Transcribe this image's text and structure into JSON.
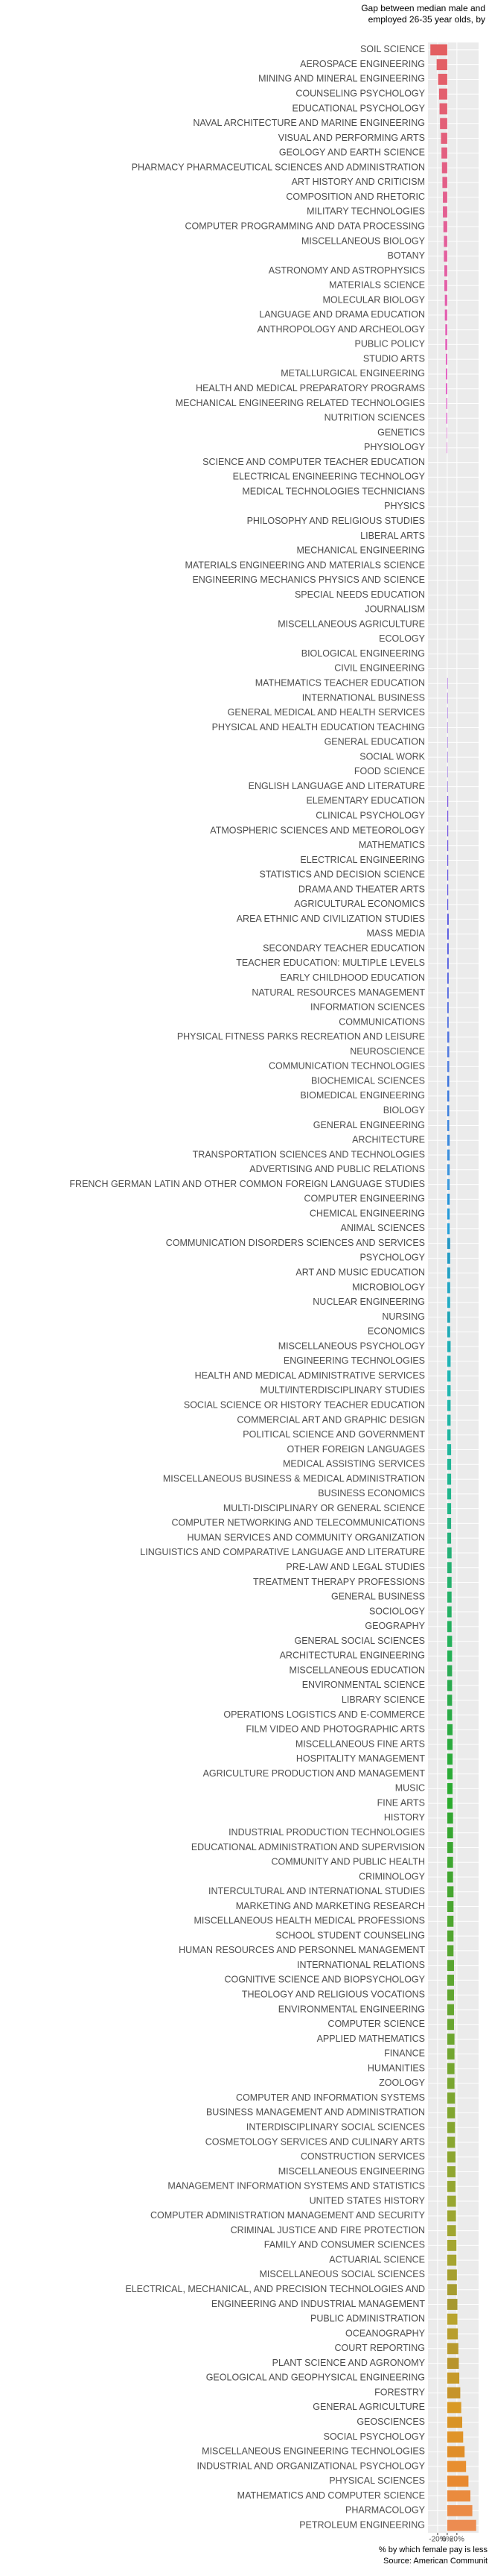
{
  "chart_data": {
    "type": "barh",
    "title": [
      "Gap between median male and",
      "employed 26-35 year olds, by"
    ],
    "xlabel": "% by which female pay is less",
    "source": "Source: American Communit",
    "categories": [
      "SOIL SCIENCE",
      "AEROSPACE ENGINEERING",
      "MINING AND MINERAL ENGINEERING",
      "COUNSELING PSYCHOLOGY",
      "EDUCATIONAL PSYCHOLOGY",
      "NAVAL ARCHITECTURE AND MARINE ENGINEERING",
      "VISUAL AND PERFORMING ARTS",
      "GEOLOGY AND EARTH SCIENCE",
      "PHARMACY PHARMACEUTICAL SCIENCES AND ADMINISTRATION",
      "ART HISTORY AND CRITICISM",
      "COMPOSITION AND RHETORIC",
      "MILITARY TECHNOLOGIES",
      "COMPUTER PROGRAMMING AND DATA PROCESSING",
      "MISCELLANEOUS BIOLOGY",
      "BOTANY",
      "ASTRONOMY AND ASTROPHYSICS",
      "MATERIALS SCIENCE",
      "MOLECULAR BIOLOGY",
      "LANGUAGE AND DRAMA EDUCATION",
      "ANTHROPOLOGY AND ARCHEOLOGY",
      "PUBLIC POLICY",
      "STUDIO ARTS",
      "METALLURGICAL ENGINEERING",
      "HEALTH AND MEDICAL PREPARATORY PROGRAMS",
      "MECHANICAL ENGINEERING RELATED TECHNOLOGIES",
      "NUTRITION SCIENCES",
      "GENETICS",
      "PHYSIOLOGY",
      "SCIENCE AND COMPUTER TEACHER EDUCATION",
      "ELECTRICAL ENGINEERING TECHNOLOGY",
      "MEDICAL TECHNOLOGIES TECHNICIANS",
      "PHYSICS",
      "PHILOSOPHY AND RELIGIOUS STUDIES",
      "LIBERAL ARTS",
      "MECHANICAL ENGINEERING",
      "MATERIALS ENGINEERING AND MATERIALS SCIENCE",
      "ENGINEERING MECHANICS PHYSICS AND SCIENCE",
      "SPECIAL NEEDS EDUCATION",
      "JOURNALISM",
      "MISCELLANEOUS AGRICULTURE",
      "ECOLOGY",
      "BIOLOGICAL ENGINEERING",
      "CIVIL ENGINEERING",
      "MATHEMATICS TEACHER EDUCATION",
      "INTERNATIONAL BUSINESS",
      "GENERAL MEDICAL AND HEALTH SERVICES",
      "PHYSICAL AND HEALTH EDUCATION TEACHING",
      "GENERAL EDUCATION",
      "SOCIAL WORK",
      "FOOD SCIENCE",
      "ENGLISH LANGUAGE AND LITERATURE",
      "ELEMENTARY EDUCATION",
      "CLINICAL PSYCHOLOGY",
      "ATMOSPHERIC SCIENCES AND METEOROLOGY",
      "MATHEMATICS",
      "ELECTRICAL ENGINEERING",
      "STATISTICS AND DECISION SCIENCE",
      "DRAMA AND THEATER ARTS",
      "AGRICULTURAL ECONOMICS",
      "AREA ETHNIC AND CIVILIZATION STUDIES",
      "MASS MEDIA",
      "SECONDARY TEACHER EDUCATION",
      "TEACHER EDUCATION: MULTIPLE LEVELS",
      "EARLY CHILDHOOD EDUCATION",
      "NATURAL RESOURCES MANAGEMENT",
      "INFORMATION SCIENCES",
      "COMMUNICATIONS",
      "PHYSICAL FITNESS PARKS RECREATION AND LEISURE",
      "NEUROSCIENCE",
      "COMMUNICATION TECHNOLOGIES",
      "BIOCHEMICAL SCIENCES",
      "BIOMEDICAL ENGINEERING",
      "BIOLOGY",
      "GENERAL ENGINEERING",
      "ARCHITECTURE",
      "TRANSPORTATION SCIENCES AND TECHNOLOGIES",
      "ADVERTISING AND PUBLIC RELATIONS",
      "FRENCH GERMAN LATIN AND OTHER COMMON FOREIGN LANGUAGE STUDIES",
      "COMPUTER ENGINEERING",
      "CHEMICAL ENGINEERING",
      "ANIMAL SCIENCES",
      "COMMUNICATION DISORDERS SCIENCES AND SERVICES",
      "PSYCHOLOGY",
      "ART AND MUSIC EDUCATION",
      "MICROBIOLOGY",
      "NUCLEAR ENGINEERING",
      "NURSING",
      "ECONOMICS",
      "MISCELLANEOUS PSYCHOLOGY",
      "ENGINEERING TECHNOLOGIES",
      "HEALTH AND MEDICAL ADMINISTRATIVE SERVICES",
      "MULTI/INTERDISCIPLINARY STUDIES",
      "SOCIAL SCIENCE OR HISTORY TEACHER EDUCATION",
      "COMMERCIAL ART AND GRAPHIC DESIGN",
      "POLITICAL SCIENCE AND GOVERNMENT",
      "OTHER FOREIGN LANGUAGES",
      "MEDICAL ASSISTING SERVICES",
      "MISCELLANEOUS BUSINESS & MEDICAL ADMINISTRATION",
      "BUSINESS ECONOMICS",
      "MULTI-DISCIPLINARY OR GENERAL SCIENCE",
      "COMPUTER NETWORKING AND TELECOMMUNICATIONS",
      "HUMAN SERVICES AND COMMUNITY ORGANIZATION",
      "LINGUISTICS AND COMPARATIVE LANGUAGE AND LITERATURE",
      "PRE-LAW AND LEGAL STUDIES",
      "TREATMENT THERAPY PROFESSIONS",
      "GENERAL BUSINESS",
      "SOCIOLOGY",
      "GEOGRAPHY",
      "GENERAL SOCIAL SCIENCES",
      "ARCHITECTURAL ENGINEERING",
      "MISCELLANEOUS EDUCATION",
      "ENVIRONMENTAL SCIENCE",
      "LIBRARY SCIENCE",
      "OPERATIONS LOGISTICS AND E-COMMERCE",
      "FILM VIDEO AND PHOTOGRAPHIC ARTS",
      "MISCELLANEOUS FINE ARTS",
      "HOSPITALITY MANAGEMENT",
      "AGRICULTURE PRODUCTION AND MANAGEMENT",
      "MUSIC",
      "FINE ARTS",
      "HISTORY",
      "INDUSTRIAL PRODUCTION TECHNOLOGIES",
      "EDUCATIONAL ADMINISTRATION AND SUPERVISION",
      "COMMUNITY AND PUBLIC HEALTH",
      "CRIMINOLOGY",
      "INTERCULTURAL AND INTERNATIONAL STUDIES",
      "MARKETING AND MARKETING RESEARCH",
      "MISCELLANEOUS HEALTH MEDICAL PROFESSIONS",
      "SCHOOL STUDENT COUNSELING",
      "HUMAN RESOURCES AND PERSONNEL MANAGEMENT",
      "INTERNATIONAL RELATIONS",
      "COGNITIVE SCIENCE AND BIOPSYCHOLOGY",
      "THEOLOGY AND RELIGIOUS VOCATIONS",
      "ENVIRONMENTAL ENGINEERING",
      "COMPUTER SCIENCE",
      "APPLIED MATHEMATICS",
      "FINANCE",
      "HUMANITIES",
      "ZOOLOGY",
      "COMPUTER AND INFORMATION SYSTEMS",
      "BUSINESS MANAGEMENT AND ADMINISTRATION",
      "INTERDISCIPLINARY SOCIAL SCIENCES",
      "COSMETOLOGY SERVICES AND CULINARY ARTS",
      "CONSTRUCTION SERVICES",
      "MISCELLANEOUS ENGINEERING",
      "MANAGEMENT INFORMATION SYSTEMS AND STATISTICS",
      "UNITED STATES HISTORY",
      "COMPUTER ADMINISTRATION MANAGEMENT AND SECURITY",
      "CRIMINAL JUSTICE AND FIRE PROTECTION",
      "FAMILY AND CONSUMER SCIENCES",
      "ACTUARIAL SCIENCE",
      "MISCELLANEOUS SOCIAL SCIENCES",
      "ELECTRICAL, MECHANICAL, AND PRECISION TECHNOLOGIES AND",
      "ENGINEERING AND INDUSTRIAL MANAGEMENT",
      "PUBLIC ADMINISTRATION",
      "OCEANOGRAPHY",
      "COURT REPORTING",
      "PLANT SCIENCE AND AGRONOMY",
      "GEOLOGICAL AND GEOPHYSICAL ENGINEERING",
      "FORESTRY",
      "GENERAL AGRICULTURE",
      "GEOSCIENCES",
      "SOCIAL PSYCHOLOGY",
      "MISCELLANEOUS ENGINEERING TECHNOLOGIES",
      "INDUSTRIAL AND ORGANIZATIONAL PSYCHOLOGY",
      "PHYSICAL SCIENCES",
      "MATHEMATICS AND COMPUTER SCIENCE",
      "PHARMACOLOGY",
      "PETROLEUM ENGINEERING"
    ],
    "values": [
      -35,
      -22,
      -19,
      -17,
      -16,
      -15,
      -13,
      -12,
      -11,
      -10,
      -9,
      -9,
      -8,
      -7,
      -7,
      -6,
      -6,
      -5,
      -5,
      -4,
      -4,
      -3,
      -3,
      -3,
      -2,
      -2,
      -1,
      -1,
      0,
      0,
      0,
      0,
      0,
      0,
      0,
      0,
      0,
      0,
      0,
      0,
      0,
      0,
      0,
      1,
      1,
      1,
      1,
      1,
      1,
      1,
      1,
      2,
      2,
      2,
      2,
      2,
      2,
      2,
      2,
      3,
      3,
      3,
      3,
      3,
      3,
      3,
      3,
      4,
      4,
      4,
      4,
      4,
      4,
      4,
      5,
      5,
      5,
      5,
      5,
      5,
      5,
      6,
      6,
      6,
      6,
      6,
      6,
      6,
      7,
      7,
      7,
      7,
      7,
      7,
      7,
      8,
      8,
      8,
      8,
      8,
      8,
      8,
      9,
      9,
      9,
      9,
      9,
      9,
      10,
      10,
      10,
      10,
      10,
      10,
      11,
      11,
      11,
      11,
      11,
      11,
      12,
      12,
      12,
      12,
      12,
      13,
      13,
      13,
      13,
      13,
      14,
      14,
      14,
      14,
      14,
      15,
      15,
      15,
      15,
      16,
      16,
      16,
      16,
      17,
      17,
      17,
      18,
      18,
      18,
      19,
      19,
      20,
      20,
      21,
      21,
      22,
      23,
      24,
      25,
      27,
      29,
      31,
      33,
      36,
      39,
      44,
      48,
      52,
      60
    ],
    "colors": [
      "hsl(359,70%,63%)",
      "hsl(357,70%,63%)",
      "hsl(355,70%,63%)",
      "hsl(353,70%,63%)",
      "hsl(351,70%,63%)",
      "hsl(349,70%,63%)",
      "hsl(347,70%,63%)",
      "hsl(345,70%,63%)",
      "hsl(343,70%,63%)",
      "hsl(341,70%,63%)",
      "hsl(339,70%,63%)",
      "hsl(337,70%,63%)",
      "hsl(335,70%,63%)",
      "hsl(333,70%,63%)",
      "hsl(331,70%,63%)",
      "hsl(329,70%,63%)",
      "hsl(327,70%,63%)",
      "hsl(325,70%,63%)",
      "hsl(323,70%,63%)",
      "hsl(321,70%,63%)",
      "hsl(319,70%,63%)",
      "hsl(317,70%,63%)",
      "hsl(315,70%,63%)",
      "hsl(313,70%,63%)",
      "hsl(311,70%,63%)",
      "hsl(309,70%,63%)",
      "hsl(307,70%,63%)",
      "hsl(305,70%,63%)",
      "hsl(303,70%,63%)",
      "hsl(301,70%,63%)",
      "hsl(299,70%,63%)",
      "hsl(297,70%,63%)",
      "hsl(295,70%,63%)",
      "hsl(293,70%,63%)",
      "hsl(291,70%,63%)",
      "hsl(289,70%,63%)",
      "hsl(287,70%,63%)",
      "hsl(285,70%,63%)",
      "hsl(283,70%,63%)",
      "hsl(281,70%,63%)",
      "hsl(279,70%,63%)",
      "hsl(277,70%,63%)",
      "hsl(275,70%,63%)",
      "hsl(273,70%,63%)",
      "hsl(271,70%,63%)",
      "hsl(269,70%,63%)",
      "hsl(267,70%,63%)",
      "hsl(265,70%,63%)",
      "hsl(263,70%,63%)",
      "hsl(261,70%,63%)",
      "hsl(259,70%,60%)",
      "hsl(257,70%,60%)",
      "hsl(255,70%,60%)",
      "hsl(253,70%,60%)",
      "hsl(251,70%,60%)",
      "hsl(249,70%,60%)",
      "hsl(247,70%,60%)",
      "hsl(245,70%,60%)",
      "hsl(243,70%,60%)",
      "hsl(241,70%,60%)",
      "hsl(239,70%,60%)",
      "hsl(237,70%,60%)",
      "hsl(235,70%,60%)",
      "hsl(233,70%,60%)",
      "hsl(231,70%,60%)",
      "hsl(229,70%,60%)",
      "hsl(227,70%,60%)",
      "hsl(225,70%,60%)",
      "hsl(223,70%,60%)",
      "hsl(221,70%,60%)",
      "hsl(219,70%,55%)",
      "hsl(217,70%,55%)",
      "hsl(215,70%,55%)",
      "hsl(213,70%,55%)",
      "hsl(211,70%,55%)",
      "hsl(209,70%,55%)",
      "hsl(207,70%,55%)",
      "hsl(205,70%,55%)",
      "hsl(203,70%,50%)",
      "hsl(201,70%,50%)",
      "hsl(199,70%,50%)",
      "hsl(197,70%,45%)",
      "hsl(195,70%,45%)",
      "hsl(193,70%,45%)",
      "hsl(191,70%,45%)",
      "hsl(189,70%,45%)",
      "hsl(187,70%,42%)",
      "hsl(185,70%,42%)",
      "hsl(183,70%,42%)",
      "hsl(181,70%,42%)",
      "hsl(179,70%,42%)",
      "hsl(177,70%,42%)",
      "hsl(175,70%,42%)",
      "hsl(173,70%,42%)",
      "hsl(171,70%,42%)",
      "hsl(169,70%,42%)",
      "hsl(167,70%,42%)",
      "hsl(165,70%,42%)",
      "hsl(163,70%,42%)",
      "hsl(161,70%,42%)",
      "hsl(159,65%,42%)",
      "hsl(157,65%,42%)",
      "hsl(155,65%,42%)",
      "hsl(153,65%,42%)",
      "hsl(151,65%,42%)",
      "hsl(149,65%,42%)",
      "hsl(147,65%,42%)",
      "hsl(145,65%,42%)",
      "hsl(143,65%,42%)",
      "hsl(141,65%,42%)",
      "hsl(139,60%,42%)",
      "hsl(137,60%,42%)",
      "hsl(135,60%,42%)",
      "hsl(133,60%,42%)",
      "hsl(131,60%,42%)",
      "hsl(129,60%,42%)",
      "hsl(127,60%,42%)",
      "hsl(125,60%,42%)",
      "hsl(123,60%,42%)",
      "hsl(121,60%,42%)",
      "hsl(119,55%,42%)",
      "hsl(117,55%,42%)",
      "hsl(115,55%,42%)",
      "hsl(113,55%,42%)",
      "hsl(111,55%,42%)",
      "hsl(109,55%,42%)",
      "hsl(107,55%,42%)",
      "hsl(105,55%,42%)",
      "hsl(103,55%,42%)",
      "hsl(101,55%,42%)",
      "hsl(99,55%,42%)",
      "hsl(97,55%,42%)",
      "hsl(95,55%,42%)",
      "hsl(93,55%,42%)",
      "hsl(91,55%,42%)",
      "hsl(89,55%,42%)",
      "hsl(87,55%,42%)",
      "hsl(85,55%,42%)",
      "hsl(83,55%,42%)",
      "hsl(81,55%,42%)",
      "hsl(79,55%,42%)",
      "hsl(77,55%,42%)",
      "hsl(75,55%,42%)",
      "hsl(73,55%,42%)",
      "hsl(71,55%,42%)",
      "hsl(69,55%,42%)",
      "hsl(67,55%,42%)",
      "hsl(65,55%,42%)",
      "hsl(63,55%,42%)",
      "hsl(61,55%,42%)",
      "hsl(59,55%,42%)",
      "hsl(57,55%,42%)",
      "hsl(55,55%,42%)",
      "hsl(53,55%,42%)",
      "hsl(51,60%,45%)",
      "hsl(49,60%,45%)",
      "hsl(47,60%,45%)",
      "hsl(45,60%,45%)",
      "hsl(43,65%,47%)",
      "hsl(41,65%,47%)",
      "hsl(39,70%,50%)",
      "hsl(37,70%,50%)",
      "hsl(35,75%,52%)",
      "hsl(33,75%,52%)",
      "hsl(31,80%,55%)",
      "hsl(29,80%,55%)",
      "hsl(27,80%,58%)",
      "hsl(25,80%,60%)",
      "hsl(23,80%,62%)"
    ],
    "xlim": [
      -40,
      65
    ],
    "xticks": [
      {
        "value": -20,
        "label": "-20%"
      },
      {
        "value": 0,
        "label": "0%"
      },
      {
        "value": 20,
        "label": "20%"
      }
    ],
    "grid": true
  }
}
